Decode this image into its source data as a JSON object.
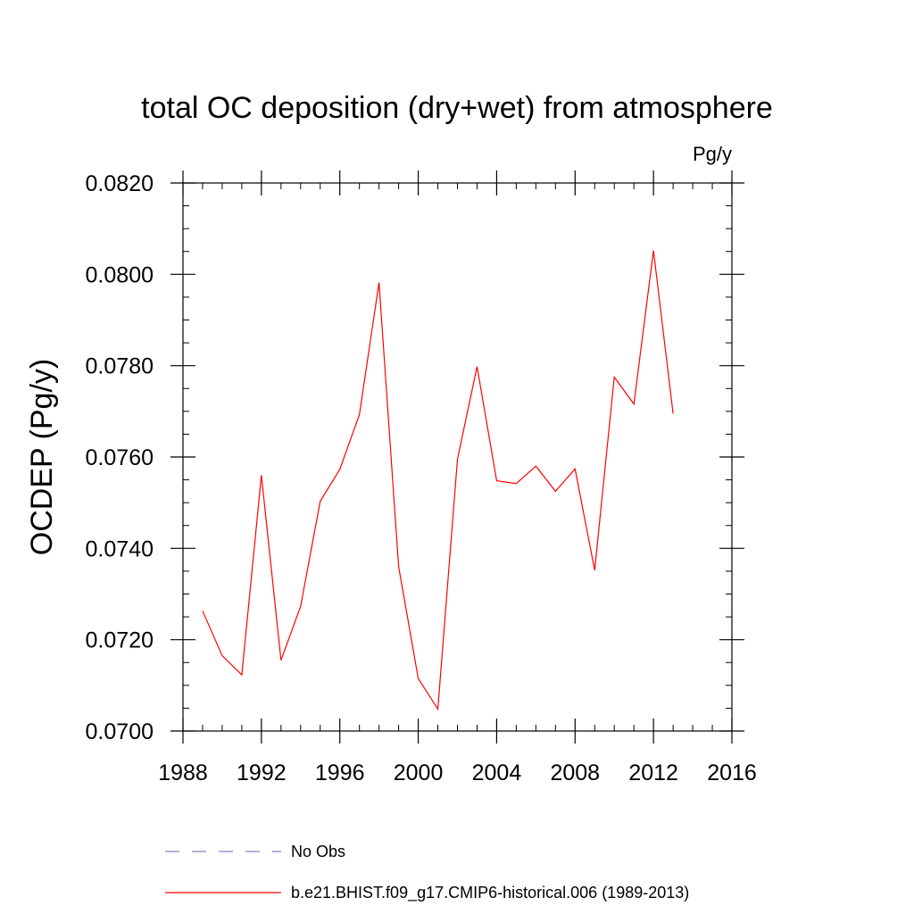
{
  "chart_data": {
    "type": "line",
    "title": "total OC deposition (dry+wet) from atmosphere",
    "units_label": "Pg/y",
    "xlabel": "",
    "ylabel": "OCDEP  (Pg/y)",
    "xlim": [
      1988,
      2016
    ],
    "ylim": [
      0.07,
      0.082
    ],
    "x_ticks": [
      1988,
      1992,
      1996,
      2000,
      2004,
      2008,
      2012,
      2016
    ],
    "x_tick_labels": [
      "1988",
      "1992",
      "1996",
      "2000",
      "2004",
      "2008",
      "2012",
      "2016"
    ],
    "x_minor_step": 1,
    "y_ticks": [
      0.07,
      0.072,
      0.074,
      0.076,
      0.078,
      0.08,
      0.082
    ],
    "y_tick_labels": [
      "0.0700",
      "0.0720",
      "0.0740",
      "0.0760",
      "0.0780",
      "0.0800",
      "0.0820"
    ],
    "y_minor_step": 0.0005,
    "grid": false,
    "legend_position": "bottom",
    "series": [
      {
        "name": "b.e21.BHIST.f09_g17.CMIP6-historical.006 (1989-2013)",
        "color": "#ff0000",
        "style": "solid",
        "x": [
          1989,
          1990,
          1991,
          1992,
          1993,
          1994,
          1995,
          1996,
          1997,
          1998,
          1999,
          2000,
          2001,
          2002,
          2003,
          2004,
          2005,
          2006,
          2007,
          2008,
          2009,
          2010,
          2011,
          2012,
          2013
        ],
        "values": [
          0.07263,
          0.07165,
          0.07123,
          0.0756,
          0.07155,
          0.07273,
          0.07503,
          0.07573,
          0.07693,
          0.07982,
          0.0736,
          0.07115,
          0.07048,
          0.07595,
          0.07798,
          0.07548,
          0.07542,
          0.0758,
          0.07525,
          0.07574,
          0.07352,
          0.07775,
          0.07716,
          0.08052,
          0.07695
        ]
      }
    ],
    "legend": [
      {
        "label": "No Obs",
        "color": "#8a80c8",
        "style": "dashed"
      },
      {
        "label": "b.e21.BHIST.f09_g17.CMIP6-historical.006 (1989-2013)",
        "color": "#ff0000",
        "style": "solid"
      }
    ]
  }
}
